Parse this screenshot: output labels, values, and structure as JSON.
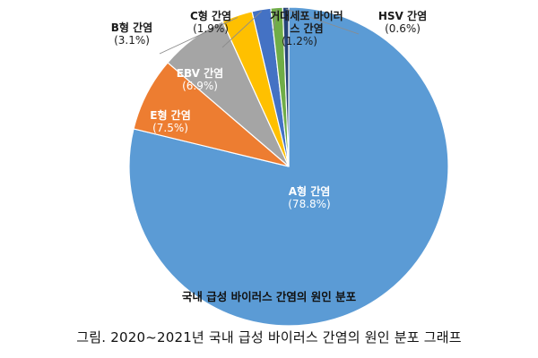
{
  "chart_data": {
    "type": "pie",
    "title": "국내 급성 바이러스 간염의 원인 분포",
    "slices": [
      {
        "label": "A형 간염",
        "value": 78.8,
        "pct_label": "(78.8%)",
        "color": "#5b9bd5"
      },
      {
        "label": "E형 간염",
        "value": 7.5,
        "pct_label": "(7.5%)",
        "color": "#ed7d31"
      },
      {
        "label": "EBV 간염",
        "value": 6.9,
        "pct_label": "(6.9%)",
        "color": "#a5a5a5"
      },
      {
        "label": "B형 간염",
        "value": 3.1,
        "pct_label": "(3.1%)",
        "color": "#ffc000"
      },
      {
        "label": "C형 간염",
        "value": 1.9,
        "pct_label": "(1.9%)",
        "color": "#4472c4"
      },
      {
        "label": "거대세포 바이러스 간염",
        "label_lines": [
          "거대세포 바이러",
          "스 간염"
        ],
        "value": 1.2,
        "pct_label": "(1.2%)",
        "color": "#70ad47"
      },
      {
        "label": "HSV 간염",
        "value": 0.6,
        "pct_label": "(0.6%)",
        "color": "#264478"
      }
    ]
  },
  "caption": "그림. 2020~2021년 국내 급성 바이러스 간염의 원인 분포 그래프"
}
